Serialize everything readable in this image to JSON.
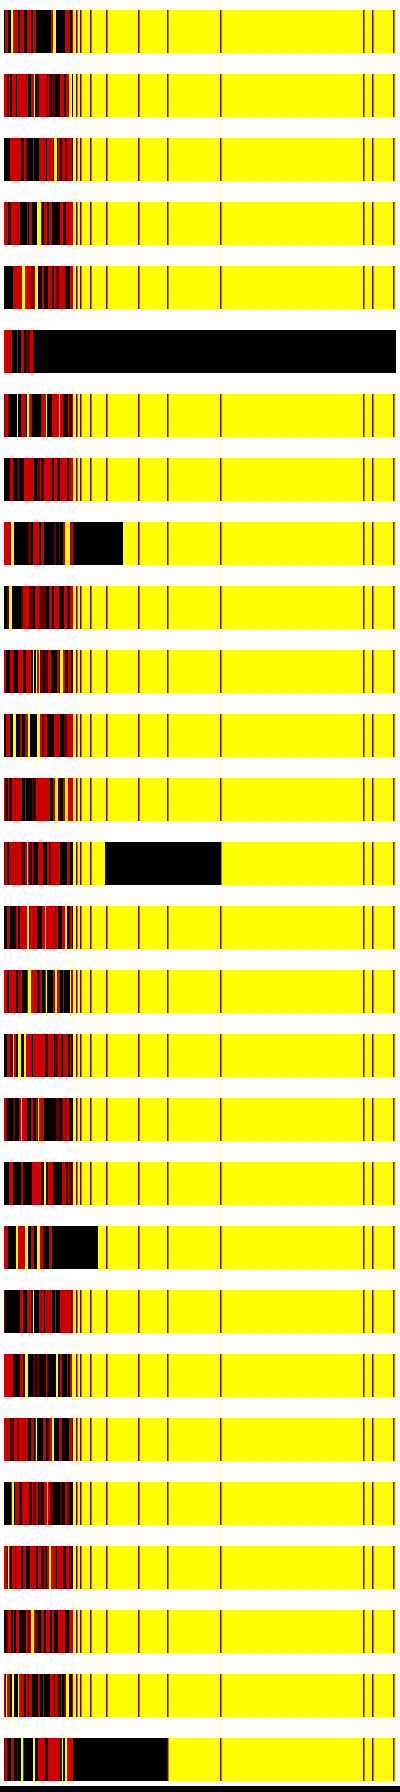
{
  "colors": {
    "background": "#ffffff",
    "yellow": "#ffff00",
    "red": "#cc0000",
    "black": "#000000",
    "dark_red": "#660000"
  },
  "strips": [
    {
      "id": 1,
      "black_block": null
    },
    {
      "id": 2,
      "black_block": null
    },
    {
      "id": 3,
      "black_block": null
    },
    {
      "id": 4,
      "black_block": null
    },
    {
      "id": 5,
      "black_block": null
    },
    {
      "id": 6,
      "black_block": "full"
    },
    {
      "id": 7,
      "black_block": null
    },
    {
      "id": 8,
      "black_block": null
    },
    {
      "id": 9,
      "black_block": "block-a"
    },
    {
      "id": 10,
      "black_block": null
    },
    {
      "id": 11,
      "black_block": null
    },
    {
      "id": 12,
      "black_block": null
    },
    {
      "id": 13,
      "black_block": null
    },
    {
      "id": 14,
      "black_block": "block-b"
    },
    {
      "id": 15,
      "black_block": null
    },
    {
      "id": 16,
      "black_block": null
    },
    {
      "id": 17,
      "black_block": null
    },
    {
      "id": 18,
      "black_block": null
    },
    {
      "id": 19,
      "black_block": null
    },
    {
      "id": 20,
      "black_block": "block-c"
    },
    {
      "id": 21,
      "black_block": null
    },
    {
      "id": 22,
      "black_block": null
    },
    {
      "id": 23,
      "black_block": null
    },
    {
      "id": 24,
      "black_block": null
    },
    {
      "id": 25,
      "black_block": null
    },
    {
      "id": 26,
      "black_block": null
    },
    {
      "id": 27,
      "black_block": null
    },
    {
      "id": 28,
      "black_block": "block-d"
    }
  ]
}
